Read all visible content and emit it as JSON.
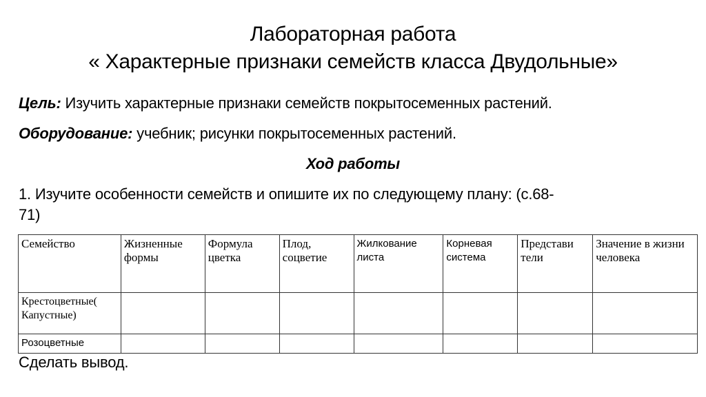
{
  "title": {
    "line1": "Лабораторная работа",
    "line2": "« Характерные признаки семейств класса Двудольные»"
  },
  "goal": {
    "label": "Цель:",
    "text": " Изучить характерные признаки семейств покрытосеменных растений."
  },
  "equipment": {
    "label": "Оборудование:",
    "text": " учебник; рисунки покрытосеменных растений."
  },
  "procedure_heading": "Ход работы",
  "task1": {
    "line1": "1. Изучите особенности семейств и опишите их по следующему плану: (с.68-",
    "line2": "71)"
  },
  "table": {
    "headers": [
      "Семейство",
      "Жизненные формы",
      "Формула цветка",
      "Плод, соцветие",
      "Жилкование листа",
      "Корневая система",
      "Представи тели",
      "Значение в жизни человека"
    ],
    "rows": [
      [
        "Крестоцветные( Капустные)",
        "",
        "",
        "",
        "",
        "",
        "",
        ""
      ],
      [
        "Розоцветные",
        "",
        "",
        "",
        "",
        "",
        "",
        ""
      ]
    ]
  },
  "conclusion": "Сделать вывод."
}
